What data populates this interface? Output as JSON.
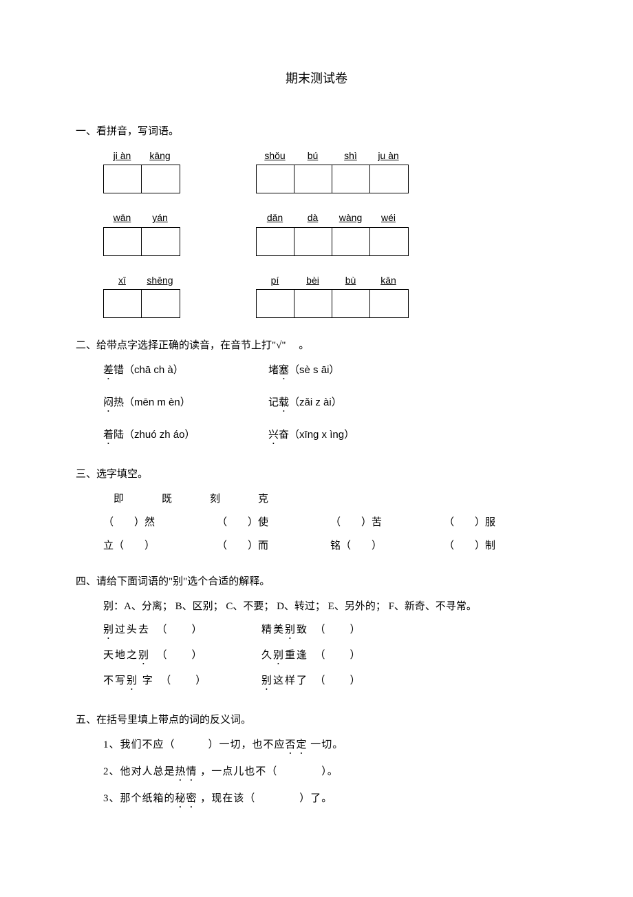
{
  "title": "期末测试卷",
  "sections": {
    "s1": {
      "heading": "一、看拼音，写词语。",
      "rows": [
        {
          "left": {
            "pinyin": [
              "ji àn",
              "kāng"
            ],
            "widths": [
              55,
              55
            ]
          },
          "right": {
            "pinyin": [
              "shǒu",
              "bú",
              "shì",
              "ju àn"
            ],
            "widths": [
              55,
              55,
              55,
              55
            ]
          }
        },
        {
          "left": {
            "pinyin": [
              "wān",
              "yán"
            ],
            "widths": [
              55,
              55
            ]
          },
          "right": {
            "pinyin": [
              "dǎn",
              "dà",
              "wàng",
              "wéi"
            ],
            "widths": [
              55,
              55,
              55,
              55
            ]
          }
        },
        {
          "left": {
            "pinyin": [
              "xī",
              "shēng"
            ],
            "widths": [
              55,
              55
            ]
          },
          "right": {
            "pinyin": [
              "pí",
              "bèi",
              "bù",
              "kān"
            ],
            "widths": [
              55,
              55,
              55,
              55
            ]
          }
        }
      ]
    },
    "s2": {
      "heading": "二、给带点字选择正确的读音，在音节上打\"√\"　 。",
      "rows": [
        {
          "left_char": "差",
          "left_rest": "错",
          "left_opts": "chā ch à",
          "right_rest": "堵",
          "right_char": "塞",
          "right_opts": "sè s āi"
        },
        {
          "left_char": "闷",
          "left_rest": "热",
          "left_opts": "mēn m èn",
          "right_rest": "记",
          "right_char": "载",
          "right_opts": "zǎi z ài"
        },
        {
          "left_char": "着",
          "left_rest": "陆",
          "left_opts": "zhuó zh áo",
          "right_char": "兴",
          "right_rest": "奋",
          "right_opts": "xīng x ìng",
          "right_char_first": true
        }
      ]
    },
    "s3": {
      "heading": "三、选字填空。",
      "choices": [
        "即",
        "既",
        "刻",
        "克"
      ],
      "rows": [
        [
          {
            "pre": "（　　）",
            "post": "然"
          },
          {
            "pre": "（　　）",
            "post": "使"
          },
          {
            "pre": "（　　）",
            "post": "苦"
          },
          {
            "pre": "（　　）",
            "post": "服"
          }
        ],
        [
          {
            "pre": "立（　　）",
            "post": ""
          },
          {
            "pre": "（　　）",
            "post": "而"
          },
          {
            "pre": "铭（　　）",
            "post": ""
          },
          {
            "pre": "（　　）",
            "post": "制"
          }
        ]
      ]
    },
    "s4": {
      "heading": "四、请给下面词语的\"别\"选个合适的解释。",
      "key": "别：A、分离； B、区别； C、不要； D、转过； E、另外的； F、新奇、不寻常。",
      "rows": [
        {
          "left_pre": "别",
          "left_rest": "过头去",
          "right_pre": "精美",
          "right_dot": "别",
          "right_post": "致"
        },
        {
          "left_pre": "天地之",
          "left_dot": "别",
          "left_rest": "",
          "right_pre": "久",
          "right_dot": "别",
          "right_post": "重逢"
        },
        {
          "left_pre": "不写",
          "left_dot": "别",
          "left_rest": " 字",
          "right_dot": "别",
          "right_post": "这样了"
        }
      ]
    },
    "s5": {
      "heading": "五、在括号里填上带点的词的反义词。",
      "items": [
        {
          "num": "1、",
          "pre": "我们不应（　　　）一切，也不应",
          "dot": "否定",
          "post": " 一切。"
        },
        {
          "num": "2、",
          "pre": "他对人总是",
          "dot": "热情",
          "post": " ，一点儿也不（　　　　）。"
        },
        {
          "num": "3、",
          "pre": "那个纸箱的",
          "dot": "秘密",
          "post": " ，现在该（　　　　）了。"
        }
      ]
    }
  }
}
